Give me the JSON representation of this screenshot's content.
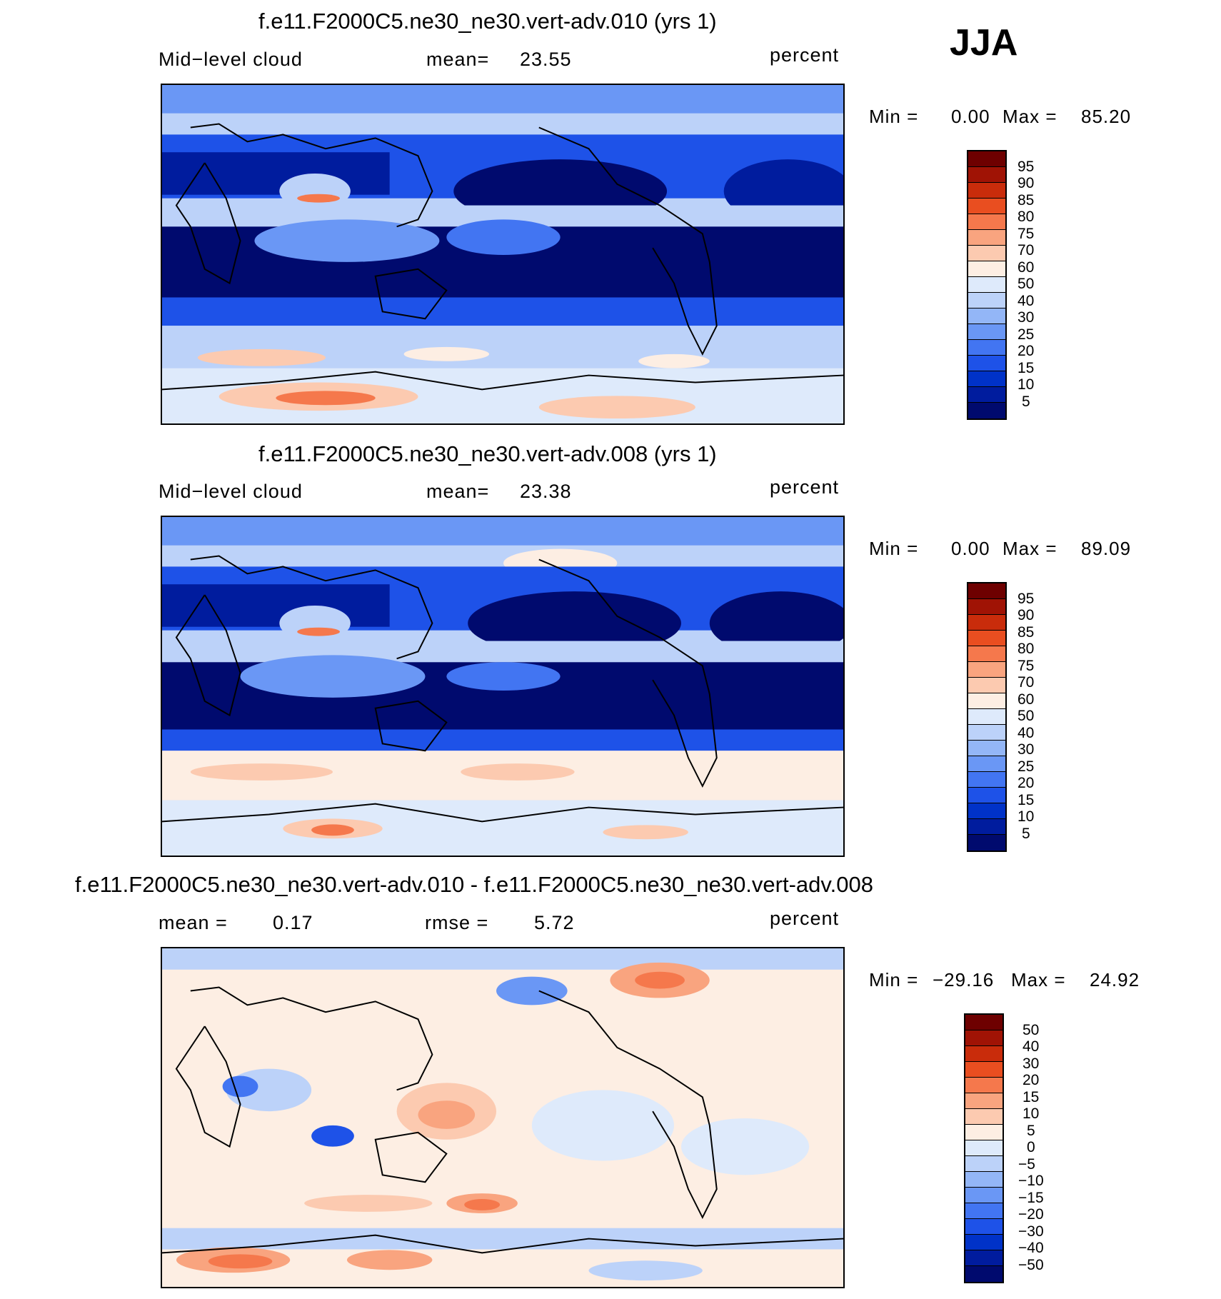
{
  "season": "JJA",
  "palettes": {
    "abs": [
      "#000a6e",
      "#001c9e",
      "#0032c8",
      "#1e52e8",
      "#4275f2",
      "#6a97f5",
      "#93b6f7",
      "#bcd2f9",
      "#deeafb",
      "#fdeee3",
      "#fccab0",
      "#f9a47f",
      "#f5784c",
      "#e94e20",
      "#c92c0b",
      "#a01305",
      "#6e0000"
    ],
    "diff": [
      "#000a6e",
      "#001c9e",
      "#0032c8",
      "#1e52e8",
      "#4275f2",
      "#6a97f5",
      "#93b6f7",
      "#bcd2f9",
      "#deeafb",
      "#fdeee3",
      "#fccab0",
      "#f9a47f",
      "#f5784c",
      "#e94e20",
      "#c92c0b",
      "#a01305",
      "#6e0000"
    ]
  },
  "panels": [
    {
      "title": "f.e11.F2000C5.ne30_ne30.vert-adv.010 (yrs 1)",
      "left_label": "Mid−level cloud",
      "mean_label": "mean=",
      "mean_value": "23.55",
      "units": "percent",
      "min_label": "Min =",
      "min_value": "0.00",
      "max_label": "Max =",
      "max_value": "85.20",
      "colorbar": [
        "95",
        "90",
        "85",
        "80",
        "75",
        "70",
        "60",
        "50",
        "40",
        "30",
        "25",
        "20",
        "15",
        "10",
        "5"
      ]
    },
    {
      "title": "f.e11.F2000C5.ne30_ne30.vert-adv.008 (yrs 1)",
      "left_label": "Mid−level cloud",
      "mean_label": "mean=",
      "mean_value": "23.38",
      "units": "percent",
      "min_label": "Min =",
      "min_value": "0.00",
      "max_label": "Max =",
      "max_value": "89.09",
      "colorbar": [
        "95",
        "90",
        "85",
        "80",
        "75",
        "70",
        "60",
        "50",
        "40",
        "30",
        "25",
        "20",
        "15",
        "10",
        "5"
      ]
    },
    {
      "title": "f.e11.F2000C5.ne30_ne30.vert-adv.010 - f.e11.F2000C5.ne30_ne30.vert-adv.008",
      "left_label": "mean =",
      "left_value": "0.17",
      "mean_label": "rmse =",
      "mean_value": "5.72",
      "units": "percent",
      "min_label": "Min =",
      "min_value": "−29.16",
      "max_label": "Max =",
      "max_value": "24.92",
      "colorbar": [
        "50",
        "40",
        "30",
        "20",
        "15",
        "10",
        "5",
        "0",
        "−5",
        "−10",
        "−15",
        "−20",
        "−30",
        "−40",
        "−50"
      ]
    }
  ]
}
